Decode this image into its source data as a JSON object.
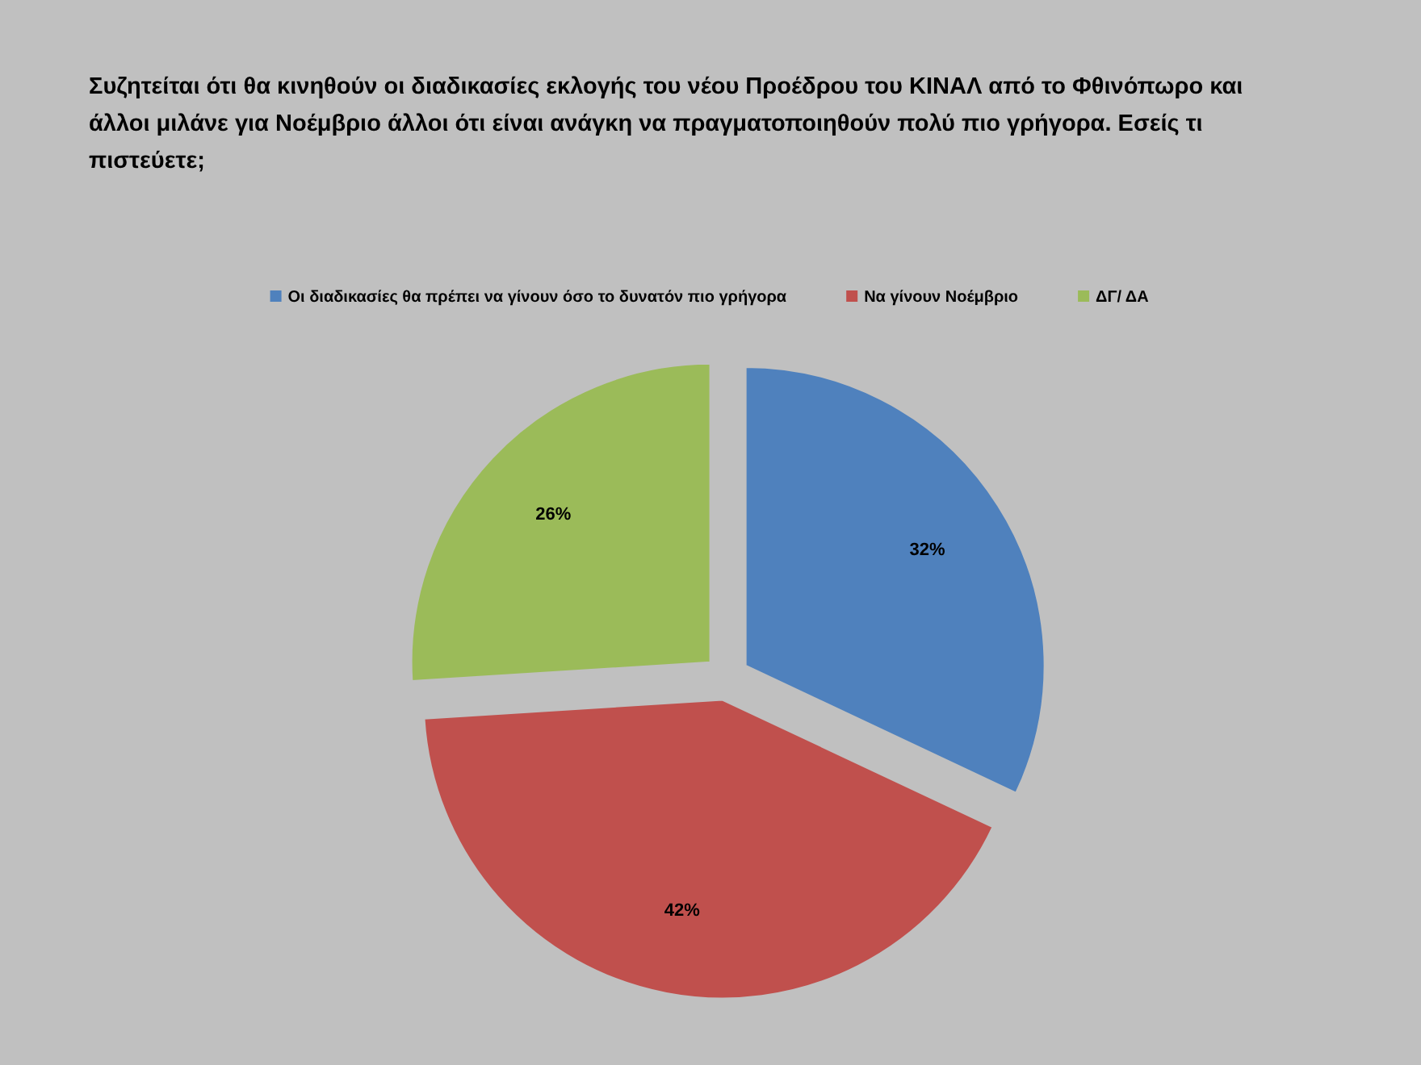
{
  "chart_data": {
    "type": "pie",
    "title": "Συζητείται ότι θα κινηθούν οι διαδικασίες εκλογής του νέου Προέδρου του ΚΙΝΑΛ από το Φθινόπωρο και άλλοι μιλάνε για Νοέμβριο άλλοι ότι είναι ανάγκη να πραγματοποιηθούν πολύ πιο γρήγορα. Εσείς τι πιστεύετε;",
    "categories": [
      "Οι διαδικασίες θα πρέπει να γίνουν όσο το δυνατόν πιο γρήγορα",
      "Να γίνουν Νοέμβριο",
      "ΔΓ/ ΔΑ"
    ],
    "values": [
      32,
      42,
      26
    ],
    "colors": [
      "#4f81bd",
      "#c0504d",
      "#9bbb59"
    ],
    "value_labels": [
      "32%",
      "42%",
      "26%"
    ],
    "legend": "top"
  }
}
